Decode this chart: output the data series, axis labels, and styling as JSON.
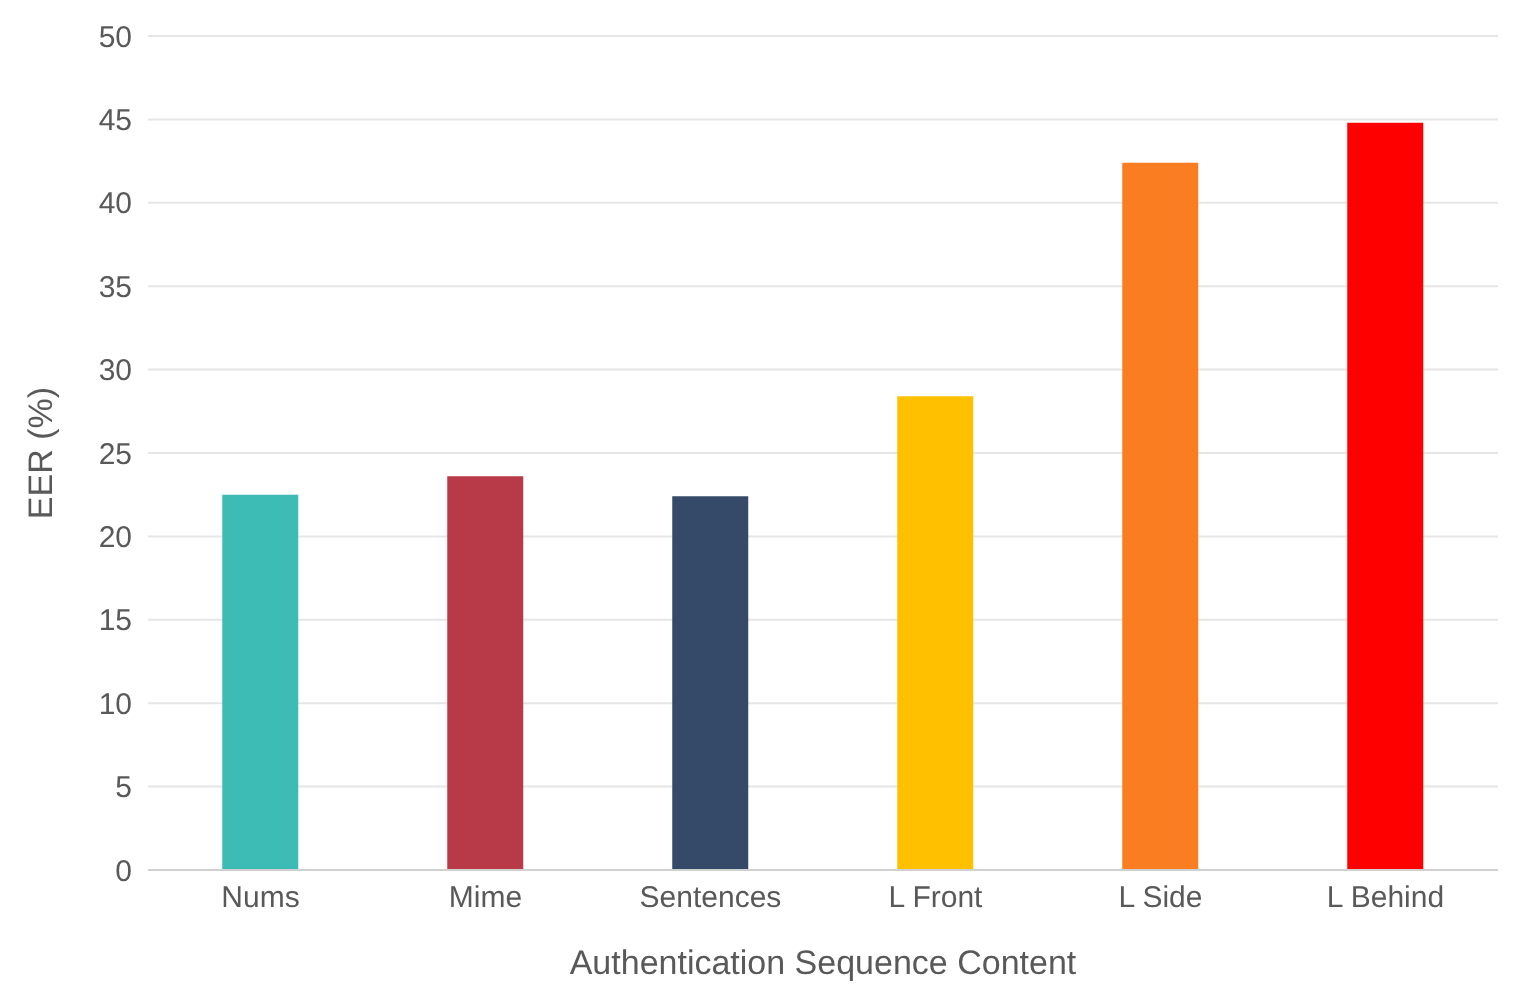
{
  "chart_data": {
    "type": "bar",
    "xlabel": "Authentication Sequence Content",
    "ylabel": "EER (%)",
    "categories": [
      "Nums",
      "Mime",
      "Sentences",
      "L Front",
      "L Side",
      "L Behind"
    ],
    "values": [
      22.5,
      23.6,
      22.4,
      28.4,
      42.4,
      44.8
    ],
    "colors": [
      "#3cbcb4",
      "#b83a48",
      "#344a68",
      "#ffc000",
      "#fb7d22",
      "#ff0000"
    ],
    "ylim": [
      0,
      50
    ],
    "yticks": [
      0,
      5,
      10,
      15,
      20,
      25,
      30,
      35,
      40,
      45,
      50
    ],
    "grid": "y",
    "legend": false
  }
}
